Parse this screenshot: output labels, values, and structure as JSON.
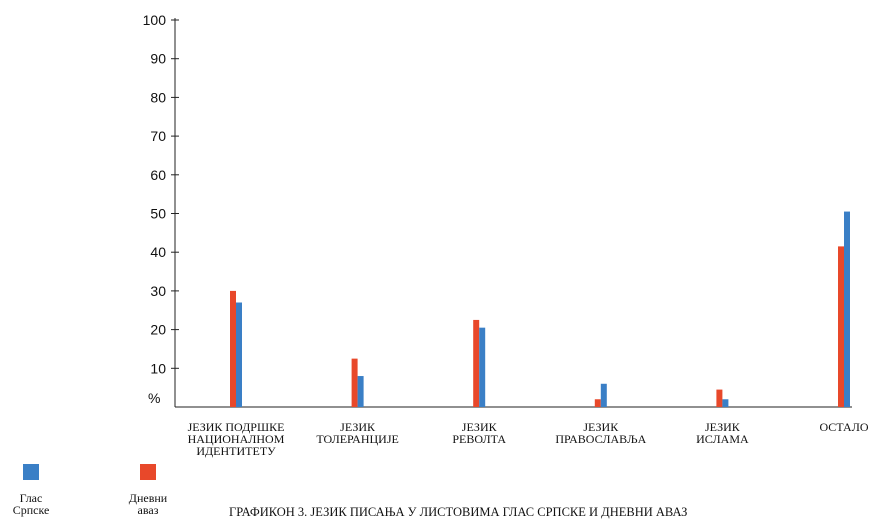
{
  "chart_data": {
    "type": "bar",
    "title": "ГРАФИКОН 3. ЈЕЗИК ПИСАЊА У ЛИСТОВИМА ГЛАС СРПСКЕ И ДНЕВНИ АВАЗ",
    "ylabel": "%",
    "ylim": [
      0,
      100
    ],
    "yticks": [
      10,
      20,
      30,
      40,
      50,
      60,
      70,
      80,
      90,
      100
    ],
    "grid": false,
    "legend_position": "bottom-left",
    "categories": [
      [
        "ЈЕЗИК ПОДРШКЕ",
        "НАЦИОНАЛНОМ",
        "ИДЕНТИТЕТУ"
      ],
      [
        "ЈЕЗИК",
        "ТОЛЕРАНЦИЈЕ"
      ],
      [
        "ЈЕЗИК",
        "РЕВОЛТА"
      ],
      [
        "ЈЕЗИК",
        "ПРАВОСЛАВЉА"
      ],
      [
        "ЈЕЗИК",
        "ИСЛАМА"
      ],
      [
        "ОСТАЛО"
      ]
    ],
    "series": [
      {
        "name": [
          "Дневни",
          "аваз"
        ],
        "color": "#e8482a",
        "values": [
          30,
          12.5,
          22.5,
          2,
          4.5,
          41.5
        ]
      },
      {
        "name": [
          "Глас",
          "Српске"
        ],
        "color": "#3a7fc6",
        "values": [
          27,
          8,
          20.5,
          6,
          2,
          50.5
        ]
      }
    ],
    "legend_order": [
      1,
      0
    ]
  }
}
